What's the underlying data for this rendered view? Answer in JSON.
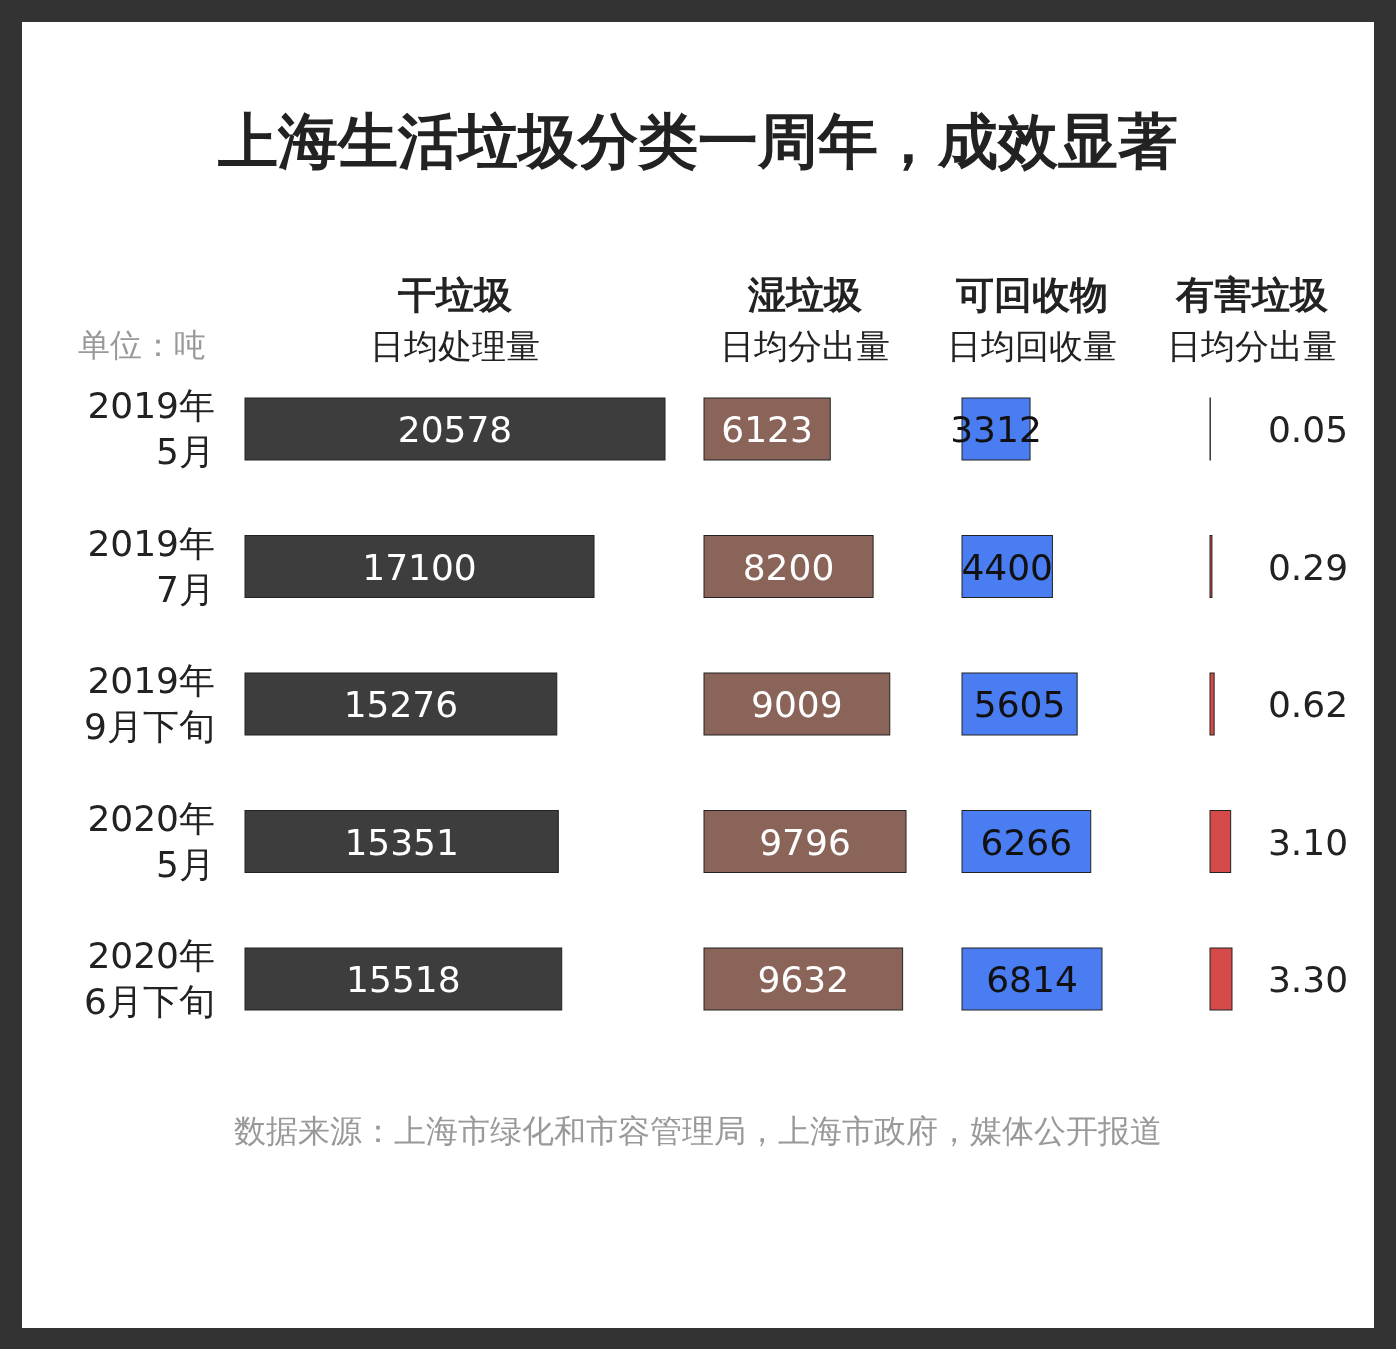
{
  "chart_data": [
    {
      "type": "bar",
      "orientation": "horizontal",
      "title": "干垃圾",
      "subtitle": "日均处理量",
      "categories": [
        "2019年\n5月",
        "2019年\n7月",
        "2019年\n9月下旬",
        "2020年\n5月",
        "2020年\n6月下旬"
      ],
      "values": [
        20578,
        17100,
        15276,
        15351,
        15518
      ],
      "color": "#3d3d3d",
      "data_labels": true,
      "tick_labels": "y",
      "annotations": [
        "上海生活垃圾分类一周年，成效显著",
        "单位：吨",
        "数据来源：上海市绿化和市容管理局，上海市政府，媒体公开报道"
      ]
    },
    {
      "type": "bar",
      "orientation": "horizontal",
      "title": "湿垃圾",
      "subtitle": "日均分出量",
      "values": [
        6123,
        8200,
        9009,
        9796,
        9632
      ],
      "color": "#8a6459",
      "data_labels": true,
      "tick_labels": false
    },
    {
      "type": "bar",
      "orientation": "horizontal",
      "title": "可回收物",
      "subtitle": "日均回收量",
      "values": [
        3312,
        4400,
        5605,
        6266,
        6814
      ],
      "color": "#4a7cf2",
      "data_labels": true,
      "tick_labels": false
    },
    {
      "type": "bar",
      "orientation": "horizontal",
      "title": "有害垃圾",
      "subtitle": "日均分出量",
      "values": [
        0.05,
        0.29,
        0.62,
        3.1,
        3.3
      ],
      "value_labels": [
        "0.05",
        "0.29",
        "0.62",
        "3.10",
        "3.30"
      ],
      "color": "#d44a48",
      "tick_labels": false
    }
  ]
}
